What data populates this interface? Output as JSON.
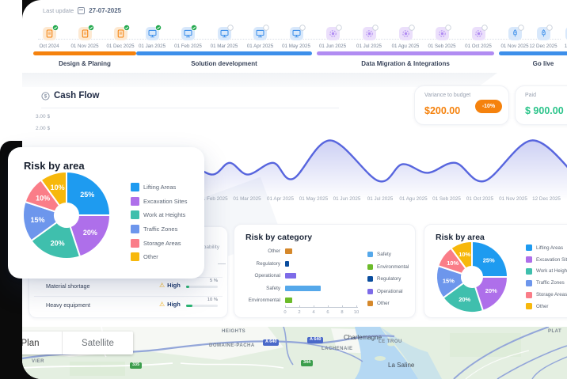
{
  "meta": {
    "last_update_label": "Last update",
    "date": "27-07-2025"
  },
  "timeline": {
    "phases": [
      {
        "label": "Design & Planing",
        "color": "#F5820D",
        "tint": "#FDE9D2",
        "icon": "document",
        "milestones": [
          {
            "date": "Oct 2024",
            "done": true
          },
          {
            "date": "01 Nov 2025",
            "done": true
          },
          {
            "date": "01 Dec 2025",
            "done": true
          }
        ]
      },
      {
        "label": "Solution development",
        "color": "#3D8FEA",
        "tint": "#D8E8FB",
        "icon": "screen",
        "milestones": [
          {
            "date": "01 Jan 2025",
            "done": true
          },
          {
            "date": "01 Feb 2025",
            "done": true
          },
          {
            "date": "01 Mar 2025",
            "done": false
          },
          {
            "date": "01 Apr 2025",
            "done": false
          },
          {
            "date": "01 May 2025",
            "done": false
          }
        ]
      },
      {
        "label": "Data Migration & Integrations",
        "color": "#B18CF2",
        "tint": "#EBDFFB",
        "icon": "gear",
        "milestones": [
          {
            "date": "01 Jun 2025",
            "done": false
          },
          {
            "date": "01 Jul 2025",
            "done": false
          },
          {
            "date": "01 Agu 2025",
            "done": false
          },
          {
            "date": "01 Seb 2025",
            "done": false
          },
          {
            "date": "01 Oct 2025",
            "done": false
          }
        ]
      },
      {
        "label": "Go live",
        "color": "#3D8FEA",
        "tint": "#D8E8FB",
        "icon": "rocket",
        "milestones": [
          {
            "date": "01 Nov 2025",
            "done": false
          },
          {
            "date": "12 Dec 2025",
            "done": false
          },
          {
            "date": "12 Jan",
            "done": false
          }
        ]
      }
    ]
  },
  "cashflow": {
    "title": "Cash Flow",
    "y_ticks": [
      "3.00 $",
      "2.00 $"
    ],
    "cards": {
      "variance": {
        "label": "Variance to budget",
        "value": "$200.00",
        "badge": "-10%"
      },
      "paid": {
        "label": "Paid",
        "value": "$ 900.00"
      }
    }
  },
  "chart_data": [
    {
      "id": "cash_flow",
      "type": "area",
      "title": "Cash Flow",
      "x": [
        "01 Feb 2025",
        "01 Mar 2025",
        "01 Apr 2025",
        "01 May 2025",
        "01 Jun 2025",
        "01 Jul 2025",
        "01 Agu 2025",
        "01 Seb 2025",
        "01 Oct 2025",
        "01 Nov 2025",
        "12 Dec 2025",
        "12 Jan"
      ],
      "ylabel": "$",
      "y_tick_labels": [
        "3.00 $",
        "2.00 $"
      ],
      "line_color": "#5765DE",
      "curve": [
        [
          100,
          1.4
        ],
        [
          135,
          1.75
        ],
        [
          170,
          1.15
        ],
        [
          205,
          1.75
        ],
        [
          240,
          1.2
        ],
        [
          262,
          1.75
        ],
        [
          285,
          1.2
        ],
        [
          317,
          1.75
        ],
        [
          342,
          1.0
        ],
        [
          389,
          2.8
        ],
        [
          450,
          0.9
        ],
        [
          480,
          1.68
        ],
        [
          512,
          1.28
        ],
        [
          547,
          1.75
        ],
        [
          584,
          0.9
        ],
        [
          644,
          2.8
        ],
        [
          700,
          1.1
        ]
      ]
    },
    {
      "id": "risk_by_area",
      "type": "pie",
      "title": "Risk by area",
      "labels": [
        "Lifting Areas",
        "Excavation Sites",
        "Work at Heights",
        "Traffic Zones",
        "Storage Areas",
        "Other"
      ],
      "values": [
        25,
        20,
        20,
        15,
        10,
        10
      ],
      "colors": [
        "#1E9BF0",
        "#AE6FEA",
        "#3FBFAD",
        "#6D96EC",
        "#FA7D88",
        "#F7B80C"
      ]
    },
    {
      "id": "risk_by_category",
      "type": "bar",
      "title": "Risk by category",
      "orientation": "horizontal",
      "categories": [
        "Other",
        "Regulatory",
        "Operational",
        "Safety",
        "Environmental"
      ],
      "values": [
        1,
        0.5,
        1.5,
        5,
        1
      ],
      "bar_colors": [
        "#D5882B",
        "#0A4D9E",
        "#7D6BE8",
        "#55A8EA",
        "#6CBB2A"
      ],
      "xlim": [
        0,
        10
      ],
      "x_ticks": [
        0,
        2,
        4,
        6,
        8,
        10
      ],
      "legend": [
        "Safety",
        "Environmental",
        "Regulatory",
        "Operational",
        "Other"
      ],
      "legend_colors": [
        "#55A8EA",
        "#6CBB2A",
        "#0A4D9E",
        "#7D6BE8",
        "#D5882B"
      ]
    },
    {
      "id": "risk_by_area_small",
      "type": "pie",
      "title": "Risk by area",
      "labels": [
        "Lifting Areas",
        "Excavation Sites",
        "Work at Heights",
        "Traffic Zones",
        "Storage Areas",
        "Other"
      ],
      "values": [
        25,
        20,
        20,
        15,
        10,
        10
      ],
      "colors": [
        "#1E9BF0",
        "#AE6FEA",
        "#3FBFAD",
        "#6D96EC",
        "#FA7D88",
        "#F7B80C"
      ]
    }
  ],
  "risk_table": {
    "probability_header": "Probability",
    "rows": [
      {
        "name": "Material shortage",
        "severity": "High",
        "progress": "5 %",
        "progress_value": 5
      },
      {
        "name": "Heavy equipment",
        "severity": "High",
        "progress": "10 %",
        "progress_value": 10
      }
    ]
  },
  "map": {
    "controls": [
      "Plan",
      "Satellite"
    ],
    "labels": [
      "HEIGHTS",
      "DOMAINE-PACHA",
      "LACHENAIE",
      "Charlemagne",
      "LE TROU",
      "La Saline",
      "VIER",
      "PLAT"
    ],
    "label_kinds": [
      "district",
      "district",
      "district",
      "town",
      "district",
      "town",
      "district",
      "district"
    ],
    "badges": [
      "A 640",
      "A 640",
      "335",
      "344"
    ],
    "badge_types": [
      "highway",
      "highway",
      "route",
      "route"
    ]
  }
}
